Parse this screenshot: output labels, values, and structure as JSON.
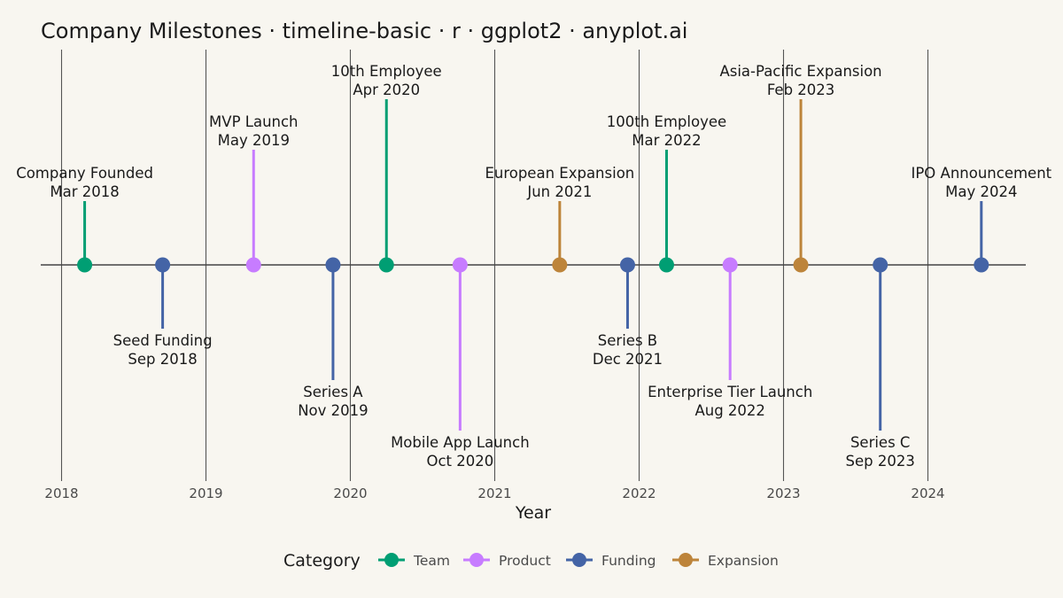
{
  "chart_data": {
    "type": "timeline",
    "title": "Company Milestones · timeline-basic · r · ggplot2 · anyplot.ai",
    "xlabel": "Year",
    "xlim": [
      2017.9,
      2024.7
    ],
    "x_ticks": [
      2018,
      2019,
      2020,
      2021,
      2022,
      2023,
      2024
    ],
    "grid": "vertical major",
    "legend": {
      "title": "Category",
      "position": "bottom",
      "entries": [
        "Team",
        "Product",
        "Funding",
        "Expansion"
      ]
    },
    "colors": {
      "Team": "#009E73",
      "Product": "#C77CFF",
      "Funding": "#4464A6",
      "Expansion": "#BD843A",
      "grid": "#555555",
      "baseline": "#444444",
      "background": "#F8F6F0"
    },
    "events": [
      {
        "event": "Company Founded",
        "date": "Mar 2018",
        "year": 2018.16,
        "category": "Team",
        "stem": 1
      },
      {
        "event": "Seed Funding",
        "date": "Sep 2018",
        "year": 2018.7,
        "category": "Funding",
        "stem": -1
      },
      {
        "event": "MVP Launch",
        "date": "May 2019",
        "year": 2019.33,
        "category": "Product",
        "stem": 2
      },
      {
        "event": "Series A",
        "date": "Nov 2019",
        "year": 2019.88,
        "category": "Funding",
        "stem": -2
      },
      {
        "event": "10th Employee",
        "date": "Apr 2020",
        "year": 2020.25,
        "category": "Team",
        "stem": 3
      },
      {
        "event": "Mobile App Launch",
        "date": "Oct 2020",
        "year": 2020.76,
        "category": "Product",
        "stem": -3
      },
      {
        "event": "European Expansion",
        "date": "Jun 2021",
        "year": 2021.45,
        "category": "Expansion",
        "stem": 1
      },
      {
        "event": "Series B",
        "date": "Dec 2021",
        "year": 2021.92,
        "category": "Funding",
        "stem": -1
      },
      {
        "event": "100th Employee",
        "date": "Mar 2022",
        "year": 2022.19,
        "category": "Team",
        "stem": 2
      },
      {
        "event": "Enterprise Tier Launch",
        "date": "Aug 2022",
        "year": 2022.63,
        "category": "Product",
        "stem": -2
      },
      {
        "event": "Asia-Pacific Expansion",
        "date": "Feb 2023",
        "year": 2023.12,
        "category": "Expansion",
        "stem": 3
      },
      {
        "event": "Series C",
        "date": "Sep 2023",
        "year": 2023.67,
        "category": "Funding",
        "stem": -3
      },
      {
        "event": "IPO Announcement",
        "date": "May 2024",
        "year": 2024.37,
        "category": "Funding",
        "stem": 1
      }
    ]
  }
}
